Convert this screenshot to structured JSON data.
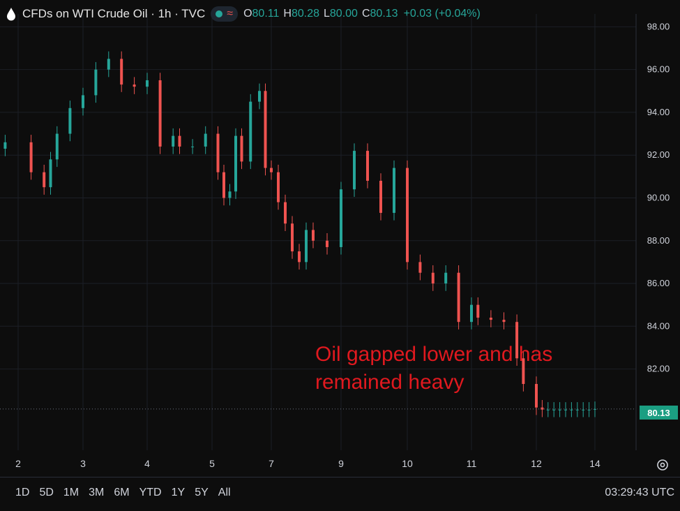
{
  "header": {
    "title": "CFDs on WTI Crude Oil · 1h · TVC",
    "icon": "oil-drop-icon",
    "status_icons": [
      "market-open-dot-icon",
      "delayed-wave-icon"
    ],
    "ohlc": [
      {
        "label": "O",
        "value": "80.11"
      },
      {
        "label": "H",
        "value": "80.28"
      },
      {
        "label": "L",
        "value": "80.00"
      },
      {
        "label": "C",
        "value": "80.13"
      }
    ],
    "change": "+0.03 (+0.04%)"
  },
  "last_price_label": "80.13",
  "annotation": {
    "line1": "Oil gapped lower and has",
    "line2": "remained heavy",
    "color": "#e0191f"
  },
  "timeframes": [
    "1D",
    "5D",
    "1M",
    "3M",
    "6M",
    "YTD",
    "1Y",
    "5Y",
    "All"
  ],
  "clock": "03:29:43 UTC",
  "colors": {
    "background": "#0d0d0d",
    "up": "#26a69a",
    "down": "#ef5350",
    "grid": "#1c1f26",
    "axis_text": "#d1d4dc"
  },
  "chart_data": {
    "type": "line",
    "subtype": "candlestick",
    "series": [
      {
        "name": "",
        "x": [
          1.8,
          2.2,
          2.4,
          2.5,
          2.6,
          2.8,
          3.0,
          3.2,
          3.4,
          3.6,
          3.8,
          4.0,
          4.2,
          4.4,
          4.5,
          4.7,
          4.9,
          5.2,
          5.4,
          5.6,
          5.8,
          6.0,
          6.3,
          6.6,
          6.8,
          7.0,
          7.2,
          7.4,
          7.6,
          7.8,
          8.0,
          8.2,
          8.6,
          9.0,
          9.2,
          9.4,
          9.6,
          9.8,
          10.0,
          10.2,
          10.4,
          10.6,
          10.8,
          11.0,
          11.1,
          11.3,
          11.5,
          11.7,
          11.8,
          12.0,
          12.2,
          12.4,
          12.6,
          12.8,
          13.0,
          13.2,
          13.4,
          13.6,
          13.8,
          14.0
        ],
        "values": [
          92.6,
          91.2,
          90.5,
          91.8,
          93.0,
          94.2,
          94.8,
          96.0,
          96.5,
          95.3,
          95.2,
          95.5,
          92.4,
          92.9,
          92.4,
          92.4,
          93.0,
          91.2,
          90.0,
          90.3,
          92.9,
          91.7,
          94.5,
          95.0,
          91.4,
          91.2,
          89.8,
          88.8,
          87.5,
          87.0,
          88.5,
          88.0,
          87.7,
          90.4,
          92.2,
          90.8,
          89.3,
          91.4,
          87.0,
          86.5,
          86.0,
          86.5,
          84.2,
          85.0,
          84.4,
          84.3,
          84.2,
          82.5,
          81.3,
          80.2,
          80.1,
          80.1,
          80.1,
          80.1,
          80.1,
          80.1,
          80.1,
          80.1,
          80.1,
          80.13
        ]
      }
    ],
    "xlabel": "",
    "ylabel": "",
    "x_tick_labels": [
      "2",
      "3",
      "4",
      "5",
      "7",
      "9",
      "10",
      "11",
      "12",
      "14"
    ],
    "y_tick_labels": [
      "98.00",
      "96.00",
      "94.00",
      "92.00",
      "90.00",
      "88.00",
      "86.00",
      "84.00",
      "82.00"
    ],
    "ylim": [
      78.2,
      98.6
    ],
    "last_price": 80.13,
    "price_axis": "right",
    "grid": true
  }
}
